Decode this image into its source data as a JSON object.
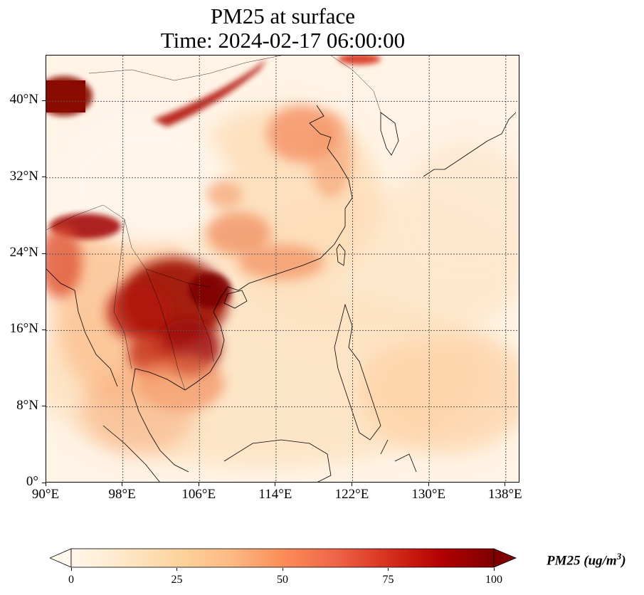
{
  "title": {
    "line1": "PM25 at surface",
    "line2": "Time: 2024-02-17 06:00:00"
  },
  "map": {
    "extent": {
      "lon": [
        90,
        139.5
      ],
      "lat": [
        0,
        44.8
      ]
    },
    "x_ticks": [
      "90°E",
      "98°E",
      "106°E",
      "114°E",
      "122°E",
      "130°E",
      "138°E"
    ],
    "x_tick_values": [
      90,
      98,
      106,
      114,
      122,
      130,
      138
    ],
    "y_ticks": [
      "0°",
      "8°N",
      "16°N",
      "24°N",
      "32°N",
      "40°N"
    ],
    "y_tick_values": [
      0,
      8,
      16,
      24,
      32,
      40
    ],
    "gridlines": true,
    "colormap": "OrRd",
    "hotspots": [
      {
        "region": "Northern Myanmar / Thailand / Laos (biomass burning)",
        "level": 100
      },
      {
        "region": "Far northwest corner (dust)",
        "level": 100
      },
      {
        "region": "Inner Mongolia band",
        "level": 95
      },
      {
        "region": "North China Plain",
        "level": 70
      },
      {
        "region": "Sichuan basin",
        "level": 60
      },
      {
        "region": "Northeast India",
        "level": 100
      },
      {
        "region": "Cambodia",
        "level": 85
      }
    ]
  },
  "colorbar": {
    "label": "PM25 (ug/m",
    "label_superscript": "3",
    "label_close": ")",
    "ticks": [
      "0",
      "25",
      "50",
      "75",
      "100"
    ],
    "tick_values": [
      0,
      25,
      50,
      75,
      100
    ],
    "range": [
      0,
      100
    ],
    "extend": "both",
    "colors": [
      "#fff7ec",
      "#fee8c8",
      "#fdd49e",
      "#fdbb84",
      "#fc8d59",
      "#ef6548",
      "#d7301f",
      "#b30000",
      "#7f0000"
    ]
  }
}
